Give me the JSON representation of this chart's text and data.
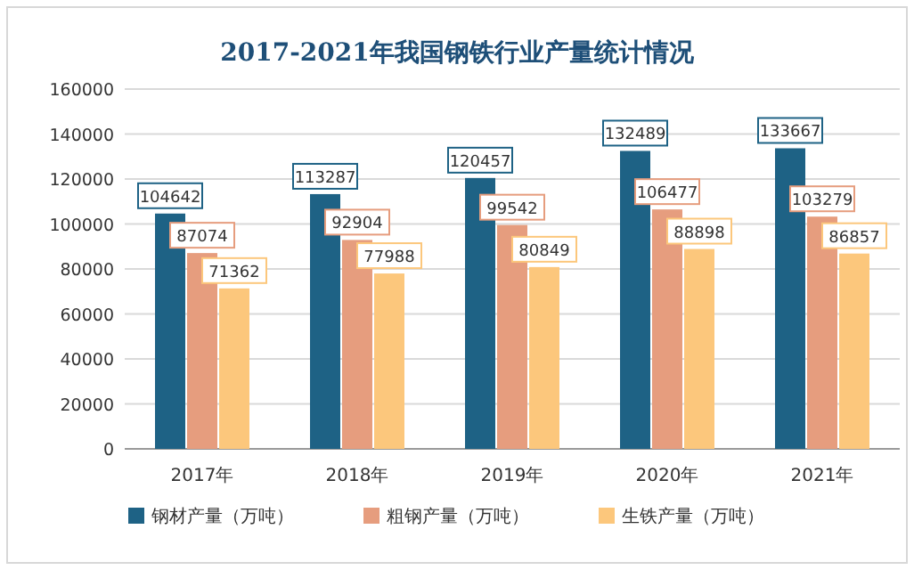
{
  "chart_data": {
    "type": "bar",
    "title": "2017-2021年我国钢铁行业产量统计情况",
    "categories": [
      "2017年",
      "2018年",
      "2019年",
      "2020年",
      "2021年"
    ],
    "series": [
      {
        "name": "钢材产量（万吨）",
        "color": "#1e6285",
        "values": [
          104642,
          113287,
          120457,
          132489,
          133667
        ]
      },
      {
        "name": "粗钢产量（万吨）",
        "color": "#e69d7e",
        "values": [
          87074,
          92904,
          99542,
          106477,
          103279
        ]
      },
      {
        "name": "生铁产量（万吨）",
        "color": "#fcc77c",
        "values": [
          71362,
          77988,
          80849,
          88898,
          86857
        ]
      }
    ],
    "ylim": [
      0,
      160000
    ],
    "yticks": [
      0,
      20000,
      40000,
      60000,
      80000,
      100000,
      120000,
      140000,
      160000
    ],
    "grid": "y",
    "legend": "bottom",
    "data_labels": true
  }
}
